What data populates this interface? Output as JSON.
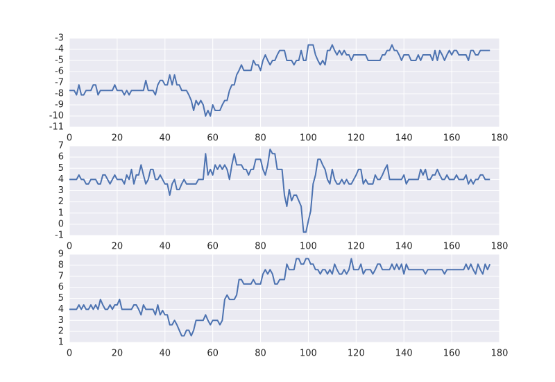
{
  "chart_data": [
    {
      "type": "line",
      "color": "#4c72b0",
      "grid": true,
      "xlim": [
        0,
        180
      ],
      "ylim": [
        -11,
        -3
      ],
      "xticks": [
        0,
        20,
        40,
        60,
        80,
        100,
        120,
        140,
        160,
        180
      ],
      "yticks": [
        -11,
        -10,
        -9,
        -8,
        -7,
        -6,
        -5,
        -4,
        -3
      ],
      "x": [
        0,
        1,
        2,
        3,
        4,
        5,
        6,
        7,
        8,
        9,
        10,
        11,
        12,
        13,
        14,
        15,
        16,
        17,
        18,
        19,
        20,
        21,
        22,
        23,
        24,
        25,
        26,
        27,
        28,
        29,
        30,
        31,
        32,
        33,
        34,
        35,
        36,
        37,
        38,
        39,
        40,
        41,
        42,
        43,
        44,
        45,
        46,
        47,
        48,
        49,
        50,
        51,
        52,
        53,
        54,
        55,
        56,
        57,
        58,
        59,
        60,
        61,
        62,
        63,
        64,
        65,
        66,
        67,
        68,
        69,
        70,
        71,
        72,
        73,
        74,
        75,
        76,
        77,
        78,
        79,
        80,
        81,
        82,
        83,
        84,
        85,
        86,
        87,
        88,
        89,
        90,
        91,
        92,
        93,
        94,
        95,
        96,
        97,
        98,
        99,
        100,
        101,
        102,
        103,
        104,
        105,
        106,
        107,
        108,
        109,
        110,
        111,
        112,
        113,
        114,
        115,
        116,
        117,
        118,
        119,
        120,
        121,
        122,
        123,
        124,
        125,
        126,
        127,
        128,
        129,
        130,
        131,
        132,
        133,
        134,
        135,
        136,
        137,
        138,
        139,
        140,
        141,
        142,
        143,
        144,
        145,
        146,
        147,
        148,
        149,
        150,
        151,
        152,
        153,
        154,
        155,
        156,
        157,
        158,
        159,
        160,
        161,
        162,
        163,
        164,
        165,
        166,
        167,
        168,
        169,
        170,
        171,
        172,
        173,
        174,
        175,
        176
      ],
      "values": [
        -7.7,
        -7.7,
        -7.7,
        -8.1,
        -7.2,
        -8.1,
        -8.1,
        -7.7,
        -7.7,
        -7.7,
        -7.2,
        -7.2,
        -8.1,
        -7.7,
        -7.7,
        -7.7,
        -7.7,
        -7.7,
        -7.7,
        -7.2,
        -7.7,
        -7.7,
        -7.7,
        -8.1,
        -7.7,
        -8.1,
        -7.7,
        -7.7,
        -7.7,
        -7.7,
        -7.7,
        -7.7,
        -6.8,
        -7.7,
        -7.7,
        -7.7,
        -8.1,
        -7.2,
        -6.8,
        -6.8,
        -7.2,
        -7.2,
        -6.3,
        -7.2,
        -6.3,
        -7.2,
        -7.2,
        -7.7,
        -7.7,
        -7.7,
        -8.1,
        -8.6,
        -9.5,
        -8.6,
        -9.0,
        -8.6,
        -9.0,
        -10.0,
        -9.5,
        -10.0,
        -9.0,
        -9.5,
        -9.5,
        -9.5,
        -9.0,
        -8.6,
        -8.6,
        -7.7,
        -7.2,
        -7.2,
        -6.3,
        -5.9,
        -5.4,
        -5.9,
        -5.9,
        -5.9,
        -5.9,
        -5.0,
        -5.4,
        -5.4,
        -5.9,
        -5.0,
        -4.5,
        -5.0,
        -5.4,
        -5.0,
        -5.0,
        -4.5,
        -4.1,
        -4.1,
        -4.1,
        -5.0,
        -5.0,
        -5.0,
        -5.4,
        -5.0,
        -5.0,
        -4.1,
        -5.0,
        -5.0,
        -3.6,
        -3.6,
        -3.6,
        -4.5,
        -5.0,
        -5.4,
        -5.0,
        -5.4,
        -4.1,
        -4.1,
        -3.6,
        -4.1,
        -4.5,
        -4.1,
        -4.5,
        -4.1,
        -4.5,
        -4.5,
        -5.0,
        -4.5,
        -4.5,
        -4.5,
        -4.5,
        -4.5,
        -4.5,
        -5.0,
        -5.0,
        -5.0,
        -5.0,
        -5.0,
        -5.0,
        -4.5,
        -4.5,
        -4.1,
        -4.1,
        -3.6,
        -4.1,
        -4.1,
        -4.5,
        -5.0,
        -4.5,
        -4.5,
        -4.5,
        -5.0,
        -5.0,
        -5.0,
        -4.5,
        -5.0,
        -4.5,
        -4.5,
        -4.5,
        -4.5,
        -5.0,
        -4.1,
        -5.0,
        -4.1,
        -4.5,
        -5.0,
        -4.5,
        -4.1,
        -4.5,
        -4.1,
        -4.1,
        -4.5,
        -4.5,
        -4.5,
        -4.5,
        -5.0,
        -4.1,
        -4.1,
        -4.5,
        -4.5,
        -4.1,
        -4.1,
        -4.1,
        -4.1,
        -4.1
      ]
    },
    {
      "type": "line",
      "color": "#4c72b0",
      "grid": true,
      "xlim": [
        0,
        180
      ],
      "ylim": [
        -1,
        7
      ],
      "xticks": [
        0,
        20,
        40,
        60,
        80,
        100,
        120,
        140,
        160,
        180
      ],
      "yticks": [
        -1,
        0,
        1,
        2,
        3,
        4,
        5,
        6,
        7
      ],
      "x": [
        0,
        1,
        2,
        3,
        4,
        5,
        6,
        7,
        8,
        9,
        10,
        11,
        12,
        13,
        14,
        15,
        16,
        17,
        18,
        19,
        20,
        21,
        22,
        23,
        24,
        25,
        26,
        27,
        28,
        29,
        30,
        31,
        32,
        33,
        34,
        35,
        36,
        37,
        38,
        39,
        40,
        41,
        42,
        43,
        44,
        45,
        46,
        47,
        48,
        49,
        50,
        51,
        52,
        53,
        54,
        55,
        56,
        57,
        58,
        59,
        60,
        61,
        62,
        63,
        64,
        65,
        66,
        67,
        68,
        69,
        70,
        71,
        72,
        73,
        74,
        75,
        76,
        77,
        78,
        79,
        80,
        81,
        82,
        83,
        84,
        85,
        86,
        87,
        88,
        89,
        90,
        91,
        92,
        93,
        94,
        95,
        96,
        97,
        98,
        99,
        100,
        101,
        102,
        103,
        104,
        105,
        106,
        107,
        108,
        109,
        110,
        111,
        112,
        113,
        114,
        115,
        116,
        117,
        118,
        119,
        120,
        121,
        122,
        123,
        124,
        125,
        126,
        127,
        128,
        129,
        130,
        131,
        132,
        133,
        134,
        135,
        136,
        137,
        138,
        139,
        140,
        141,
        142,
        143,
        144,
        145,
        146,
        147,
        148,
        149,
        150,
        151,
        152,
        153,
        154,
        155,
        156,
        157,
        158,
        159,
        160,
        161,
        162,
        163,
        164,
        165,
        166,
        167,
        168,
        169,
        170,
        171,
        172,
        173,
        174,
        175,
        176
      ],
      "values": [
        4.0,
        4.0,
        4.0,
        4.0,
        4.4,
        4.0,
        4.0,
        3.6,
        3.6,
        4.0,
        4.0,
        4.0,
        3.6,
        3.6,
        4.4,
        4.4,
        4.0,
        3.6,
        4.0,
        4.4,
        4.0,
        4.0,
        4.0,
        3.6,
        4.4,
        4.0,
        4.9,
        3.6,
        4.4,
        4.4,
        5.3,
        4.4,
        3.6,
        4.0,
        4.9,
        4.9,
        4.0,
        4.0,
        4.4,
        4.0,
        3.6,
        3.6,
        2.6,
        3.6,
        4.0,
        3.1,
        3.1,
        3.6,
        4.0,
        3.6,
        3.6,
        3.6,
        3.6,
        3.6,
        4.0,
        4.0,
        4.0,
        6.3,
        4.4,
        4.9,
        4.4,
        5.3,
        4.9,
        5.3,
        4.9,
        5.3,
        4.9,
        4.0,
        5.3,
        6.3,
        5.3,
        5.3,
        5.3,
        4.9,
        4.9,
        4.4,
        4.9,
        4.9,
        5.8,
        5.8,
        5.8,
        4.9,
        4.4,
        5.3,
        6.7,
        6.3,
        6.3,
        4.9,
        4.9,
        4.9,
        2.6,
        1.6,
        3.1,
        2.1,
        2.6,
        2.6,
        2.1,
        1.6,
        -0.7,
        -0.7,
        0.3,
        1.2,
        3.6,
        4.4,
        5.8,
        5.8,
        5.3,
        4.9,
        4.0,
        3.6,
        4.9,
        4.0,
        3.6,
        3.6,
        4.0,
        3.6,
        4.0,
        3.6,
        3.6,
        4.0,
        4.4,
        4.9,
        4.9,
        3.6,
        4.0,
        3.6,
        3.6,
        3.6,
        4.4,
        4.0,
        4.0,
        4.4,
        4.9,
        5.3,
        4.0,
        4.0,
        4.0,
        4.0,
        4.0,
        4.0,
        4.4,
        3.6,
        4.0,
        4.0,
        4.0,
        4.0,
        4.0,
        4.9,
        4.4,
        4.9,
        4.0,
        4.0,
        4.4,
        4.4,
        4.9,
        4.4,
        4.0,
        4.0,
        4.4,
        4.0,
        4.0,
        4.0,
        4.4,
        4.0,
        4.0,
        4.0,
        4.4,
        3.6,
        4.0,
        3.6,
        4.0,
        4.0,
        4.4,
        4.4,
        4.0,
        4.0,
        4.0
      ]
    },
    {
      "type": "line",
      "color": "#4c72b0",
      "grid": true,
      "xlim": [
        0,
        180
      ],
      "ylim": [
        1,
        9
      ],
      "xticks": [
        0,
        20,
        40,
        60,
        80,
        100,
        120,
        140,
        160,
        180
      ],
      "yticks": [
        1,
        2,
        3,
        4,
        5,
        6,
        7,
        8,
        9
      ],
      "x": [
        0,
        1,
        2,
        3,
        4,
        5,
        6,
        7,
        8,
        9,
        10,
        11,
        12,
        13,
        14,
        15,
        16,
        17,
        18,
        19,
        20,
        21,
        22,
        23,
        24,
        25,
        26,
        27,
        28,
        29,
        30,
        31,
        32,
        33,
        34,
        35,
        36,
        37,
        38,
        39,
        40,
        41,
        42,
        43,
        44,
        45,
        46,
        47,
        48,
        49,
        50,
        51,
        52,
        53,
        54,
        55,
        56,
        57,
        58,
        59,
        60,
        61,
        62,
        63,
        64,
        65,
        66,
        67,
        68,
        69,
        70,
        71,
        72,
        73,
        74,
        75,
        76,
        77,
        78,
        79,
        80,
        81,
        82,
        83,
        84,
        85,
        86,
        87,
        88,
        89,
        90,
        91,
        92,
        93,
        94,
        95,
        96,
        97,
        98,
        99,
        100,
        101,
        102,
        103,
        104,
        105,
        106,
        107,
        108,
        109,
        110,
        111,
        112,
        113,
        114,
        115,
        116,
        117,
        118,
        119,
        120,
        121,
        122,
        123,
        124,
        125,
        126,
        127,
        128,
        129,
        130,
        131,
        132,
        133,
        134,
        135,
        136,
        137,
        138,
        139,
        140,
        141,
        142,
        143,
        144,
        145,
        146,
        147,
        148,
        149,
        150,
        151,
        152,
        153,
        154,
        155,
        156,
        157,
        158,
        159,
        160,
        161,
        162,
        163,
        164,
        165,
        166,
        167,
        168,
        169,
        170,
        171,
        172,
        173,
        174,
        175,
        176
      ],
      "values": [
        4.0,
        4.0,
        4.0,
        4.0,
        4.4,
        4.0,
        4.4,
        4.0,
        4.0,
        4.4,
        4.0,
        4.4,
        4.0,
        4.9,
        4.4,
        4.0,
        4.0,
        4.4,
        4.0,
        4.4,
        4.4,
        4.9,
        4.0,
        4.0,
        4.0,
        4.0,
        4.0,
        4.4,
        4.4,
        4.0,
        3.5,
        4.4,
        4.0,
        4.0,
        4.0,
        4.0,
        3.5,
        4.4,
        3.5,
        3.9,
        3.5,
        3.5,
        2.6,
        2.6,
        3.0,
        2.6,
        2.1,
        1.6,
        1.6,
        2.1,
        2.1,
        1.6,
        2.1,
        3.0,
        3.0,
        3.0,
        3.0,
        3.5,
        3.0,
        2.6,
        3.0,
        3.0,
        3.0,
        2.6,
        3.0,
        4.9,
        5.3,
        4.9,
        4.9,
        4.9,
        5.3,
        6.7,
        6.7,
        6.3,
        6.3,
        6.3,
        6.3,
        6.7,
        6.3,
        6.3,
        6.3,
        7.2,
        7.6,
        7.2,
        7.6,
        7.2,
        6.3,
        6.3,
        6.7,
        6.7,
        6.7,
        8.1,
        7.6,
        7.6,
        7.6,
        8.6,
        8.6,
        8.1,
        8.1,
        8.6,
        8.6,
        8.1,
        8.1,
        7.6,
        7.6,
        7.2,
        7.6,
        7.6,
        7.2,
        7.6,
        7.2,
        8.1,
        7.6,
        7.2,
        7.2,
        7.6,
        7.2,
        7.6,
        8.6,
        7.6,
        7.6,
        7.6,
        8.1,
        7.2,
        7.6,
        7.6,
        7.6,
        7.2,
        7.6,
        8.1,
        8.1,
        7.6,
        7.6,
        7.6,
        7.6,
        8.1,
        7.6,
        8.1,
        7.6,
        8.1,
        7.2,
        8.1,
        7.6,
        7.6,
        7.6,
        7.6,
        7.6,
        7.6,
        7.6,
        7.2,
        7.6,
        7.6,
        7.6,
        7.6,
        7.6,
        7.6,
        7.6,
        7.2,
        7.6,
        7.6,
        7.6,
        7.6,
        7.6,
        7.6,
        7.6,
        7.6,
        8.1,
        7.6,
        8.1,
        7.6,
        7.2,
        8.1,
        7.6,
        7.2,
        8.1,
        7.6,
        8.1
      ]
    }
  ]
}
